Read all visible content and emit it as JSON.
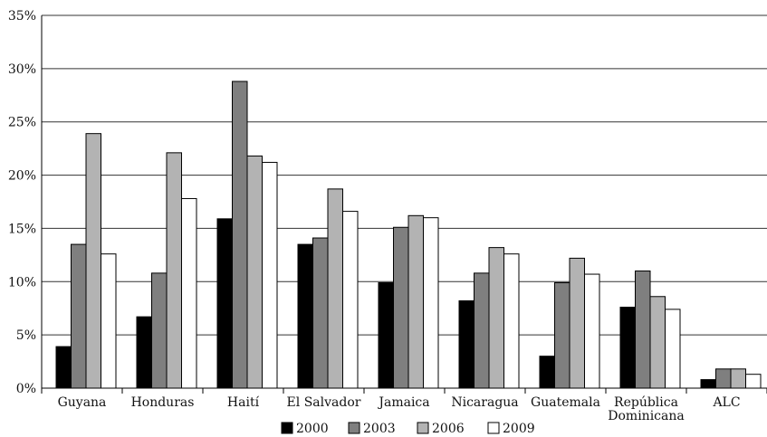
{
  "chart_data": {
    "type": "bar",
    "title": "",
    "xlabel": "",
    "ylabel": "",
    "ylim": [
      0,
      35
    ],
    "yticks": [
      0,
      5,
      10,
      15,
      20,
      25,
      30,
      35
    ],
    "ytick_labels": [
      "0%",
      "5%",
      "10%",
      "15%",
      "20%",
      "25%",
      "30%",
      "35%"
    ],
    "grid": true,
    "legend_position": "bottom",
    "categories": [
      [
        "Guyana"
      ],
      [
        "Honduras"
      ],
      [
        "Haití"
      ],
      [
        "El Salvador"
      ],
      [
        "Jamaica"
      ],
      [
        "Nicaragua"
      ],
      [
        "Guatemala"
      ],
      [
        "República",
        "Dominicana"
      ],
      [
        "ALC"
      ]
    ],
    "series": [
      {
        "name": "2000",
        "color": "#000000",
        "values": [
          3.9,
          6.7,
          15.9,
          13.5,
          9.9,
          8.2,
          3.0,
          7.6,
          0.8
        ]
      },
      {
        "name": "2003",
        "color": "#7f7f7f",
        "values": [
          13.5,
          10.8,
          28.8,
          14.1,
          15.1,
          10.8,
          9.9,
          11.0,
          1.8
        ]
      },
      {
        "name": "2006",
        "color": "#b3b3b3",
        "values": [
          23.9,
          22.1,
          21.8,
          18.7,
          16.2,
          13.2,
          12.2,
          8.6,
          1.8
        ]
      },
      {
        "name": "2009",
        "color": "#ffffff",
        "values": [
          12.6,
          17.8,
          21.2,
          16.6,
          16.0,
          12.6,
          10.7,
          7.4,
          1.3
        ]
      }
    ]
  }
}
